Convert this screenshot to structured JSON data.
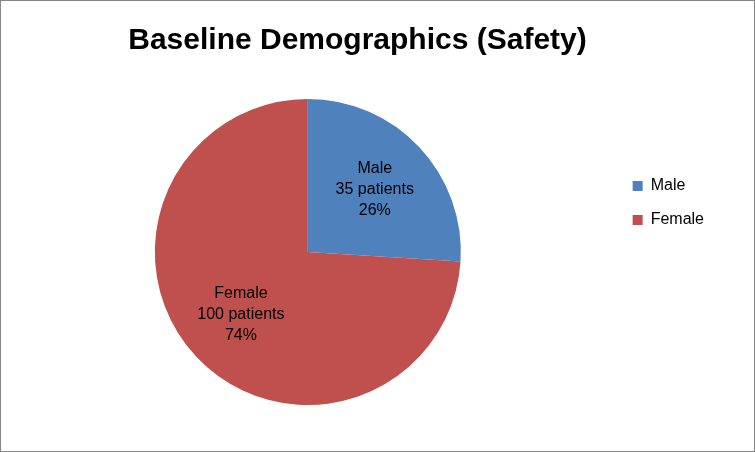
{
  "chart_data": {
    "type": "pie",
    "title": "Baseline Demographics (Safety)",
    "categories": [
      "Male",
      "Female"
    ],
    "values": [
      26,
      74
    ],
    "value_labels": [
      "26%",
      "74%"
    ],
    "counts": [
      35,
      100
    ],
    "count_labels": [
      "35 patients",
      "100 patients"
    ],
    "colors": [
      "#4f81bd",
      "#c0504d"
    ],
    "legend": "right",
    "data_labels": true
  }
}
